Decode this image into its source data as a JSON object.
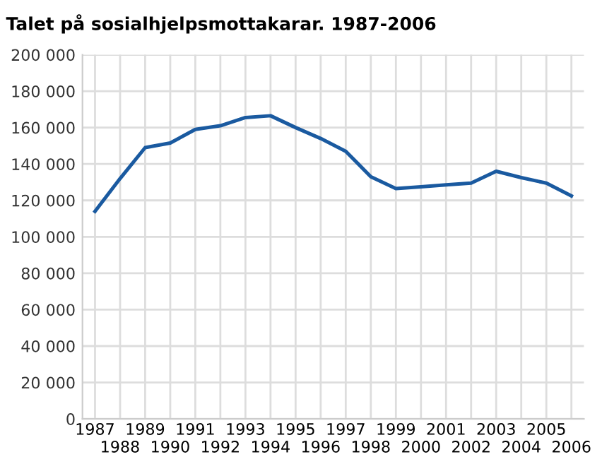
{
  "chart_data": {
    "type": "line",
    "title": "Talet på sosialhjelpsmottakarar. 1987-2006",
    "categories": [
      "1987",
      "1988",
      "1989",
      "1990",
      "1991",
      "1992",
      "1993",
      "1994",
      "1995",
      "1996",
      "1997",
      "1998",
      "1999",
      "2000",
      "2001",
      "2002",
      "2003",
      "2004",
      "2005",
      "2006"
    ],
    "series": [
      {
        "color": "#1a5aa0",
        "values": [
          114000,
          132000,
          149000,
          151500,
          159000,
          161000,
          165500,
          166500,
          160000,
          154000,
          147000,
          133000,
          126500,
          127500,
          128500,
          129500,
          136000,
          132500,
          129500,
          122500
        ]
      }
    ],
    "ylim": [
      0,
      200000
    ],
    "yticks": [
      {
        "value": 0,
        "label": "0"
      },
      {
        "value": 20000,
        "label": "20 000"
      },
      {
        "value": 40000,
        "label": "40 000"
      },
      {
        "value": 60000,
        "label": "60 000"
      },
      {
        "value": 80000,
        "label": "80 000"
      },
      {
        "value": 100000,
        "label": "100 000"
      },
      {
        "value": 120000,
        "label": "120 000"
      },
      {
        "value": 140000,
        "label": "140 000"
      },
      {
        "value": 160000,
        "label": "160 000"
      },
      {
        "value": 180000,
        "label": "180 000"
      },
      {
        "value": 200000,
        "label": "200 000"
      }
    ],
    "grid": true,
    "marker": "none",
    "line_style": "solid"
  }
}
